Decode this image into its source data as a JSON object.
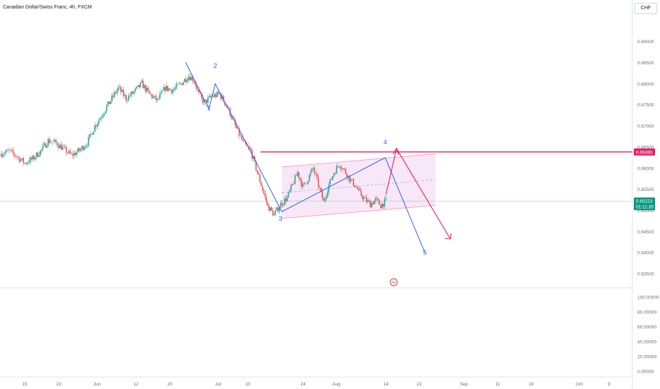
{
  "header": {
    "title": "Canadian Dollar/Swiss Franc, 4h, FXCM"
  },
  "currency_button": "CHF",
  "colors": {
    "up": "#26a69a",
    "down": "#ef5350",
    "wave": "#2962ff",
    "level": "#e91e63",
    "channel_fill": "#f3d4ee",
    "current_tag": "#089981"
  },
  "price_tags": {
    "level": "0.66385",
    "current": "0.65223",
    "countdown": "01:11:35"
  },
  "wave_labels": [
    "1",
    "2",
    "3",
    "4",
    "5"
  ],
  "chart_data": [
    {
      "type": "candlestick",
      "title": "Canadian Dollar/Swiss Franc, 4h, FXCM",
      "x_ticks": [
        "15",
        "23",
        "Jun",
        "12",
        "20",
        "Jul",
        "10",
        "24",
        "Aug",
        "14",
        "22",
        "Sep",
        "11",
        "19",
        "Oct",
        "9"
      ],
      "y_ticks": [
        "0.69000",
        "0.68500",
        "0.68000",
        "0.67500",
        "0.67000",
        "0.66500",
        "0.66000",
        "0.65500",
        "0.65000",
        "0.64500",
        "0.64000",
        "0.63500"
      ],
      "ylim": [
        0.632,
        0.6948
      ],
      "approx_close_path": [
        [
          0,
          0.6635
        ],
        [
          6,
          0.664
        ],
        [
          12,
          0.6628
        ],
        [
          18,
          0.6612
        ],
        [
          24,
          0.6622
        ],
        [
          30,
          0.664
        ],
        [
          36,
          0.6665
        ],
        [
          42,
          0.666
        ],
        [
          48,
          0.6645
        ],
        [
          54,
          0.663
        ],
        [
          60,
          0.6642
        ],
        [
          66,
          0.666
        ],
        [
          72,
          0.67
        ],
        [
          78,
          0.673
        ],
        [
          84,
          0.676
        ],
        [
          90,
          0.679
        ],
        [
          96,
          0.6765
        ],
        [
          102,
          0.678
        ],
        [
          108,
          0.68
        ],
        [
          114,
          0.6775
        ],
        [
          120,
          0.676
        ],
        [
          126,
          0.679
        ],
        [
          132,
          0.6785
        ],
        [
          138,
          0.68
        ],
        [
          144,
          0.6818
        ],
        [
          148,
          0.681
        ],
        [
          152,
          0.6775
        ],
        [
          156,
          0.6755
        ],
        [
          162,
          0.677
        ],
        [
          168,
          0.6775
        ],
        [
          174,
          0.6745
        ],
        [
          180,
          0.67
        ],
        [
          186,
          0.666
        ],
        [
          192,
          0.664
        ],
        [
          196,
          0.66
        ],
        [
          200,
          0.656
        ],
        [
          205,
          0.651
        ],
        [
          210,
          0.649
        ],
        [
          215,
          0.6515
        ],
        [
          220,
          0.653
        ],
        [
          224,
          0.656
        ],
        [
          228,
          0.659
        ],
        [
          232,
          0.6555
        ],
        [
          236,
          0.6575
        ],
        [
          240,
          0.66
        ],
        [
          244,
          0.656
        ],
        [
          248,
          0.652
        ],
        [
          252,
          0.656
        ],
        [
          256,
          0.659
        ],
        [
          260,
          0.661
        ],
        [
          264,
          0.6595
        ],
        [
          268,
          0.6575
        ],
        [
          272,
          0.656
        ],
        [
          276,
          0.654
        ],
        [
          280,
          0.6525
        ],
        [
          284,
          0.6515
        ],
        [
          288,
          0.6525
        ],
        [
          292,
          0.6512
        ],
        [
          296,
          0.6522
        ]
      ],
      "levels": [
        {
          "value": 0.66385,
          "label": "0.66385"
        }
      ],
      "current_price": 0.65223,
      "elliott_waves": [
        {
          "label": "1",
          "price": 0.674
        },
        {
          "label": "2",
          "price": 0.68
        },
        {
          "label": "3",
          "price": 0.6497
        },
        {
          "label": "4",
          "price": 0.6625
        },
        {
          "label": "5",
          "price": 0.64
        }
      ]
    },
    {
      "type": "line",
      "title": "",
      "y_ticks": [
        "100.00000",
        "80.00000",
        "60.00000",
        "40.00000",
        "20.00000",
        "0.00000"
      ],
      "ylim": [
        0,
        100
      ],
      "values": []
    }
  ]
}
